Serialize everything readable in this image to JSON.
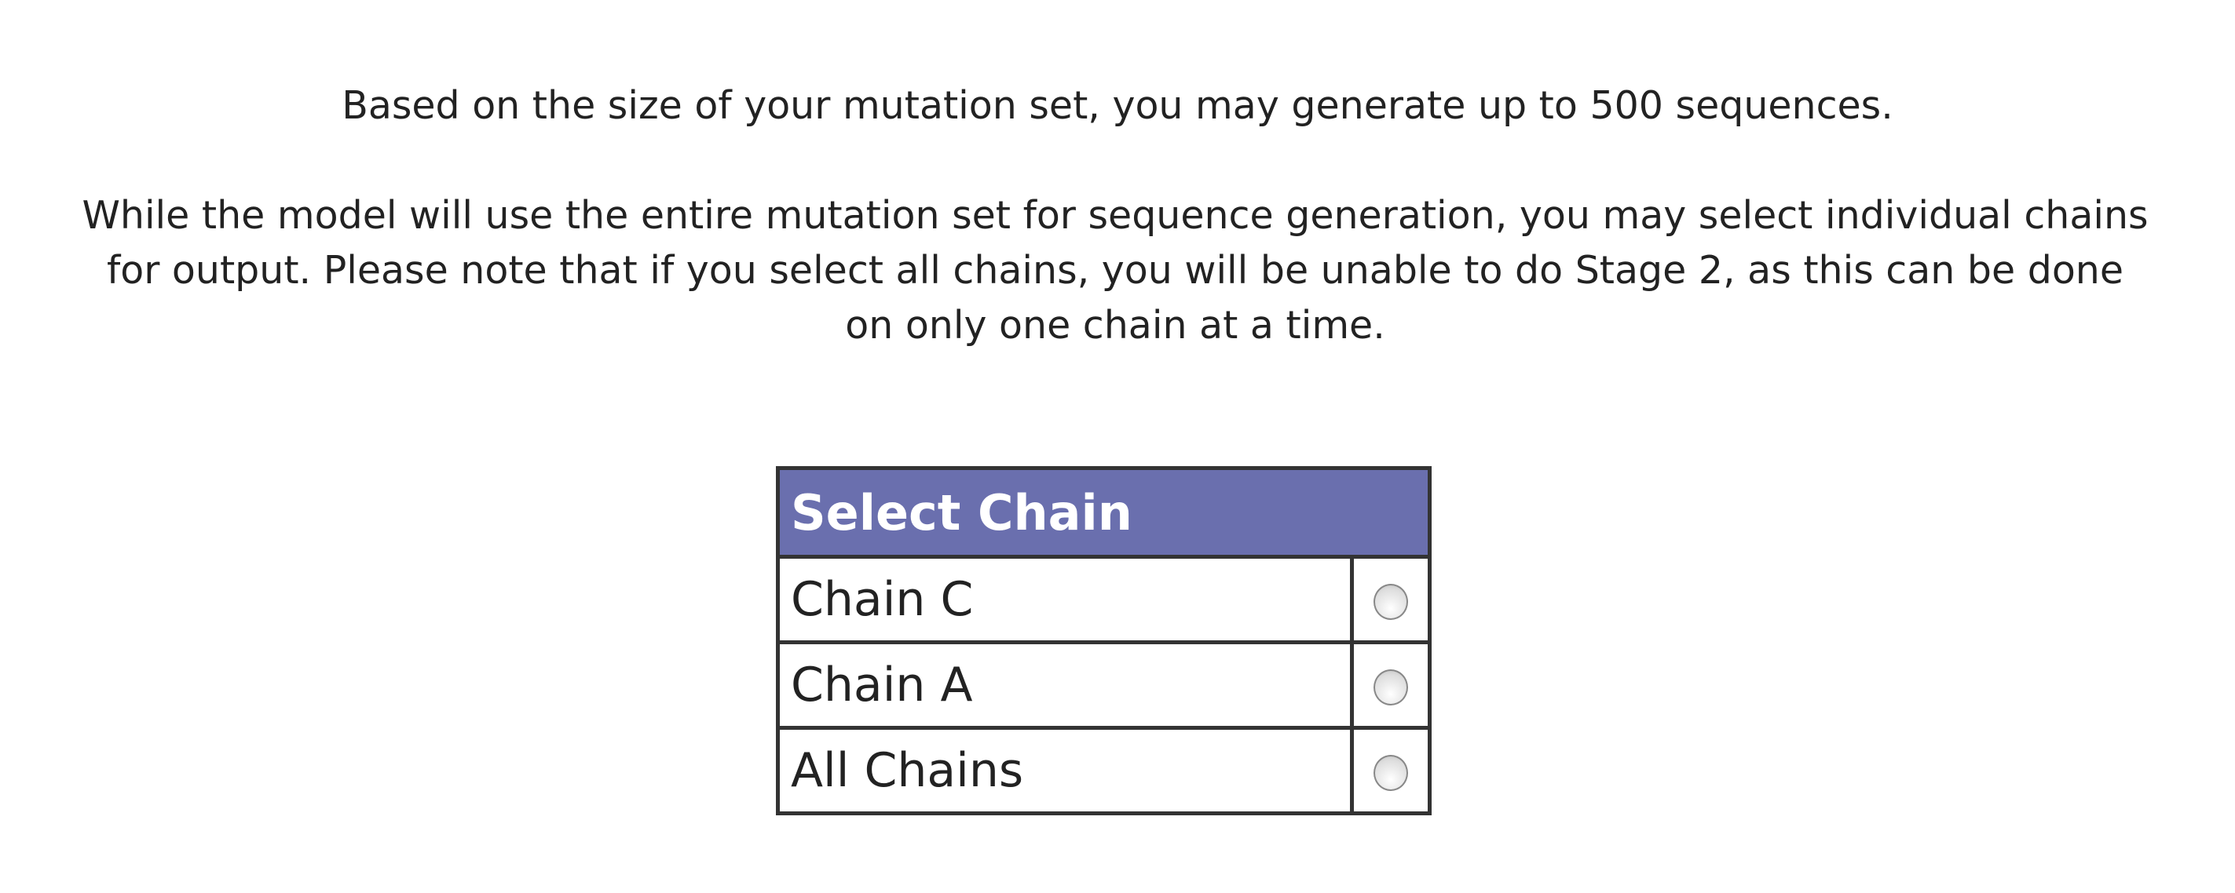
{
  "intro": {
    "line1": "Based on the size of your mutation set, you may generate up to 500 sequences.",
    "line2": "While the model will use the entire mutation set for sequence generation, you may select individual chains for output. Please note that if you select all chains, you will be unable to do Stage 2, as this can be done on only one chain at a time."
  },
  "table": {
    "header": "Select Chain",
    "header_color": "#6a6fae",
    "rows": [
      {
        "label": "Chain C",
        "selected": false
      },
      {
        "label": "Chain A",
        "selected": false
      },
      {
        "label": "All Chains",
        "selected": false
      }
    ]
  }
}
